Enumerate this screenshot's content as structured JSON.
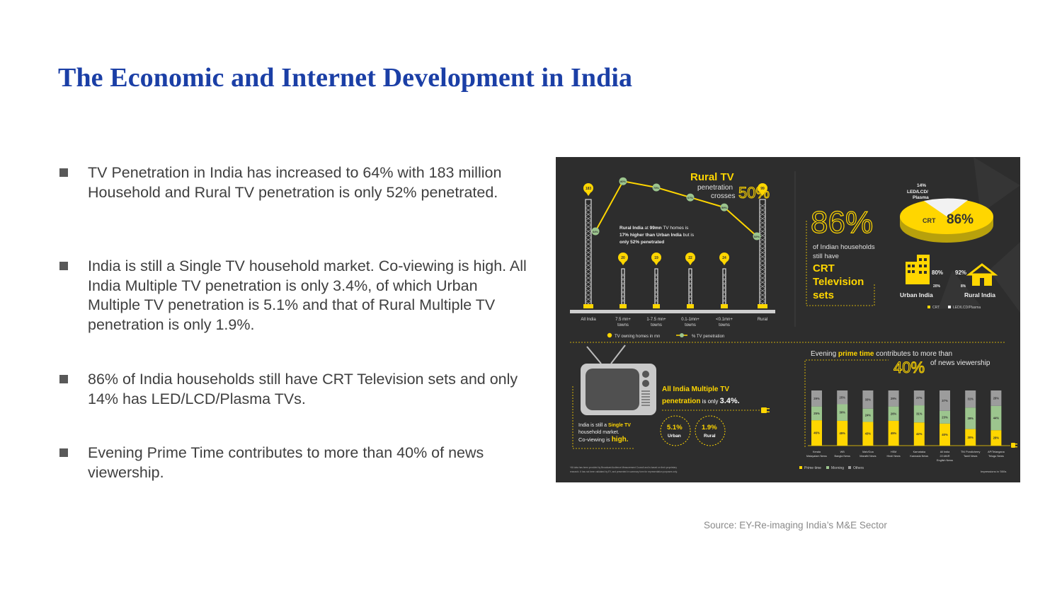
{
  "slide": {
    "title": "The Economic and Internet Development in India",
    "bullets": [
      "TV Penetration in India has increased to 64% with 183 million Household and Rural TV penetration is only 52% penetrated.",
      "India is still a Single TV household market. Co-viewing is high. All India Multiple TV penetration is only 3.4%, of which Urban Multiple TV penetration is 5.1% and that of Rural Multiple TV penetration is only 1.9%.",
      "86% of India households still have  CRT Television sets and only 14% has LED/LCD/Plasma TVs.",
      "Evening Prime Time contributes to more than 40% of news viewership."
    ],
    "source": "Source: EY-Re-imaging India’s M&E Sector"
  },
  "colors": {
    "title": "#1b3fa6",
    "body_text": "#3f3f3f",
    "infographic_bg": "#2d2d2d",
    "accent_yellow": "#ffd600",
    "accent_green": "#9cc58e",
    "grey_segment": "#9c9c9c"
  },
  "infographic": {
    "rural": {
      "title": "Rural TV",
      "line2": "penetration",
      "line3": "crosses",
      "big": "50%",
      "note1_a": "Rural India",
      "note1_b": " at ",
      "note1_c": "99mn",
      "note1_d": " TV homes is",
      "note2_a": "17% higher than ",
      "note2_b": "Urban India",
      "note2_c": " but is",
      "note3": "only 52% penetrated",
      "legend_homes": "TV owning homes in mn",
      "legend_pen": "% TV penetration"
    },
    "towers": [
      {
        "label1": "All India",
        "label2": "",
        "homes": "183",
        "pen": "64%"
      },
      {
        "label1": "7.5 mn+",
        "label2": "towns",
        "homes": "20",
        "pen": "80%"
      },
      {
        "label1": "1-7.5 mn+",
        "label2": "towns",
        "homes": "19",
        "pen": "75%"
      },
      {
        "label1": "0.1-1mn+",
        "label2": "towns",
        "homes": "22",
        "pen": "67%"
      },
      {
        "label1": "<0.1mn+",
        "label2": "towns",
        "homes": "24",
        "pen": "59%"
      },
      {
        "label1": "Rural",
        "label2": "",
        "homes": "99",
        "pen": "52%"
      }
    ],
    "crt": {
      "big": "86%",
      "l1": "of Indian households",
      "l2": "still have",
      "c1": "CRT",
      "c2": "Television",
      "c3": "sets",
      "pie_crt_label": "CRT",
      "pie_crt_value": "86%",
      "pie_led_value": "14%",
      "pie_led_l1": "LED/LCD/",
      "pie_led_l2": "Plasma",
      "urban_crt": "80%",
      "urban_led": "20%",
      "urban_label": "Urban India",
      "rural_crt": "92%",
      "rural_led": "8%",
      "rural_label": "Rural India",
      "legend_crt": "CRT",
      "legend_led": "LED/LCD/Plasma"
    },
    "multi": {
      "h1": "All India Multiple TV",
      "h2a": "penetration",
      "h2b": " is only ",
      "h2c": "3.4%.",
      "s1a": "India is still a ",
      "s1b": "Single TV",
      "s2": "household market.",
      "s3a": "Co-viewing is ",
      "s3b": "high.",
      "urban_value": "5.1%",
      "urban_label": "Urban",
      "rural_value": "1.9%",
      "rural_label": "Rural",
      "footnote1": "*All data has been provided by Broadcast Audience Measurement Council and is based on their proprietary",
      "footnote2": "research. It has not been validated by EY, and presented in summary form for representation purposes only."
    },
    "prime": {
      "h1a": "Evening ",
      "h1b": "prime time",
      "h1c": " contributes to more than",
      "big": "40%",
      "h2": "of news viewership",
      "legend_prime": "Prime time",
      "legend_morning": "Morning",
      "legend_others": "Others",
      "units": "Impressions in '000s",
      "bars": [
        {
          "l1": "Kerala",
          "l2": "Malayalam News",
          "l3": "",
          "prime": "46%",
          "morning": "25%",
          "others": "29%"
        },
        {
          "l1": "WB",
          "l2": "Bangla News",
          "l3": "",
          "prime": "45%",
          "morning": "30%",
          "others": "25%"
        },
        {
          "l1": "Mah/Goa",
          "l2": "Marathi News",
          "l3": "",
          "prime": "43%",
          "morning": "24%",
          "others": "33%"
        },
        {
          "l1": "HSM",
          "l2": "Hindi News",
          "l3": "",
          "prime": "45%",
          "morning": "26%",
          "others": "29%"
        },
        {
          "l1": "Karnataka",
          "l2": "Kannada News",
          "l3": "",
          "prime": "42%",
          "morning": "31%",
          "others": "27%"
        },
        {
          "l1": "All India",
          "l2": "22-MAR",
          "l3": "English News",
          "prime": "40%",
          "morning": "23%",
          "others": "37%"
        },
        {
          "l1": "TN/ Pondicherry",
          "l2": "Tamil News",
          "l3": "",
          "prime": "30%",
          "morning": "39%",
          "others": "31%"
        },
        {
          "l1": "AP/Telangana",
          "l2": "Telugu News",
          "l3": "",
          "prime": "28%",
          "morning": "44%",
          "others": "28%"
        }
      ]
    }
  }
}
